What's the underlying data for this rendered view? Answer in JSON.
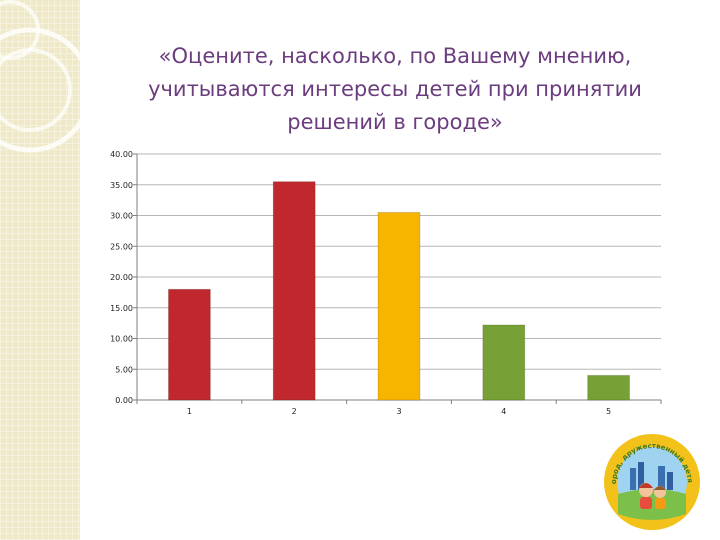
{
  "slide": {
    "title_lines": [
      "«Оцените, насколько, по Вашему мнению,",
      "учитываются интересы детей при принятии",
      "решений в городе»"
    ],
    "logo_text": "Город, дружественный детям"
  },
  "chart_data": {
    "type": "bar",
    "title": "",
    "xlabel": "",
    "ylabel": "",
    "categories": [
      "1",
      "2",
      "3",
      "4",
      "5"
    ],
    "values": [
      18.0,
      35.5,
      30.5,
      12.2,
      4.0
    ],
    "bar_colors": [
      "#c0282d",
      "#c0282d",
      "#f8b500",
      "#77a136",
      "#77a136"
    ],
    "ylim": [
      0,
      40
    ],
    "yticks": [
      "0.00",
      "5.00",
      "10.00",
      "15.00",
      "20.00",
      "25.00",
      "30.00",
      "35.00",
      "40.00"
    ],
    "grid": true,
    "legend": "none"
  },
  "colors": {
    "title": "#6b3d7f",
    "grid": "#b7b7b7",
    "band": "#efe9c7"
  }
}
